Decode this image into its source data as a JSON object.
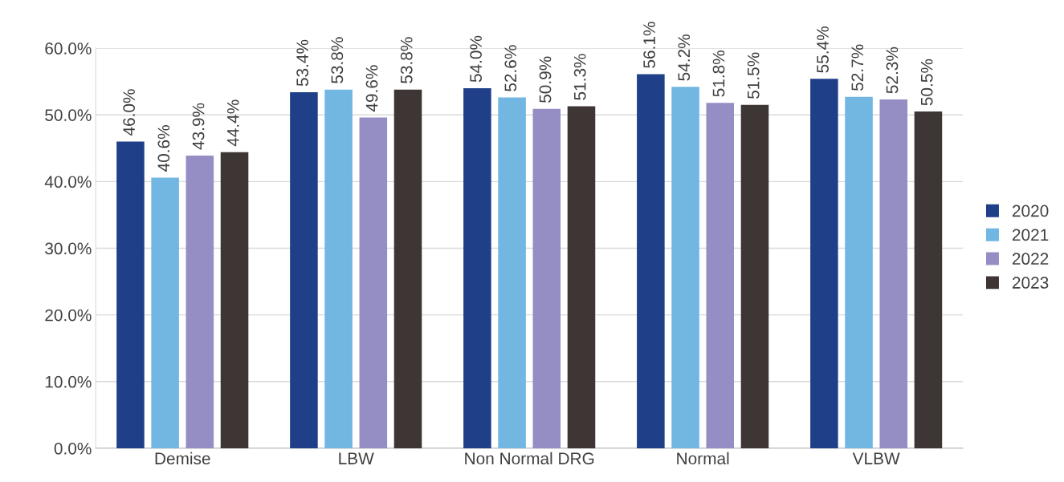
{
  "chart_data": {
    "type": "bar",
    "categories": [
      "Demise",
      "LBW",
      "Non Normal DRG",
      "Normal",
      "VLBW"
    ],
    "series": [
      {
        "name": "2020",
        "color": "#1f4088",
        "values": [
          46.0,
          53.4,
          54.0,
          56.1,
          55.4
        ],
        "value_labels": [
          "46.0%",
          "53.4%",
          "54.0%",
          "56.1%",
          "55.4%"
        ]
      },
      {
        "name": "2021",
        "color": "#72b6e2",
        "values": [
          40.6,
          53.8,
          52.6,
          54.2,
          52.7
        ],
        "value_labels": [
          "40.6%",
          "53.8%",
          "52.6%",
          "54.2%",
          "52.7%"
        ]
      },
      {
        "name": "2022",
        "color": "#958ec4",
        "values": [
          43.9,
          49.6,
          50.9,
          51.8,
          52.3
        ],
        "value_labels": [
          "43.9%",
          "49.6%",
          "50.9%",
          "51.8%",
          "52.3%"
        ]
      },
      {
        "name": "2023",
        "color": "#3e3634",
        "values": [
          44.4,
          53.8,
          51.3,
          51.5,
          50.5
        ],
        "value_labels": [
          "44.4%",
          "53.8%",
          "51.3%",
          "51.5%",
          "50.5%"
        ]
      }
    ],
    "ylim": [
      0,
      60
    ],
    "yticks": [
      {
        "value": 0,
        "label": "0.0%"
      },
      {
        "value": 10,
        "label": "10.0%"
      },
      {
        "value": 20,
        "label": "20.0%"
      },
      {
        "value": 30,
        "label": "30.0%"
      },
      {
        "value": 40,
        "label": "40.0%"
      },
      {
        "value": 50,
        "label": "50.0%"
      },
      {
        "value": 60,
        "label": "60.0%"
      }
    ],
    "grid": "y",
    "legend": "right"
  }
}
